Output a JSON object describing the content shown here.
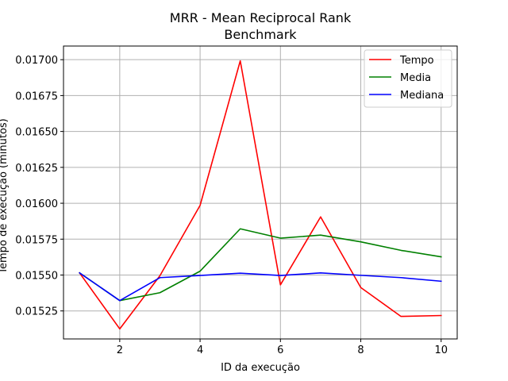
{
  "chart_data": {
    "type": "line",
    "title": [
      "MRR - Mean Reciprocal Rank",
      "Benchmark"
    ],
    "xlabel": "ID da execução",
    "ylabel": "Tempo de execução (minutos)",
    "x": [
      1,
      2,
      3,
      4,
      5,
      6,
      7,
      8,
      9,
      10
    ],
    "xlim": [
      0.6,
      10.4
    ],
    "ylim": [
      0.015055,
      0.017095
    ],
    "xticks": [
      2,
      4,
      6,
      8,
      10
    ],
    "xtick_labels": [
      "2",
      "4",
      "6",
      "8",
      "10"
    ],
    "yticks": [
      0.01525,
      0.0155,
      0.01575,
      0.016,
      0.01625,
      0.0165,
      0.01675,
      0.017
    ],
    "ytick_labels": [
      "0.01525",
      "0.01550",
      "0.01575",
      "0.01600",
      "0.01625",
      "0.01650",
      "0.01675",
      "0.01700"
    ],
    "grid": true,
    "legend_position": "top-right",
    "series": [
      {
        "name": "Tempo",
        "color": "#ff0000",
        "values": [
          0.015515,
          0.015125,
          0.015495,
          0.015985,
          0.016992,
          0.015432,
          0.015905,
          0.015413,
          0.015212,
          0.015218
        ]
      },
      {
        "name": "Media",
        "color": "#008000",
        "values": [
          0.015515,
          0.015322,
          0.015377,
          0.015527,
          0.015822,
          0.015757,
          0.015778,
          0.015731,
          0.015672,
          0.015627
        ]
      },
      {
        "name": "Mediana",
        "color": "#0000ff",
        "values": [
          0.015515,
          0.015322,
          0.015482,
          0.015497,
          0.015513,
          0.015497,
          0.015515,
          0.015498,
          0.015482,
          0.015457
        ]
      }
    ]
  }
}
